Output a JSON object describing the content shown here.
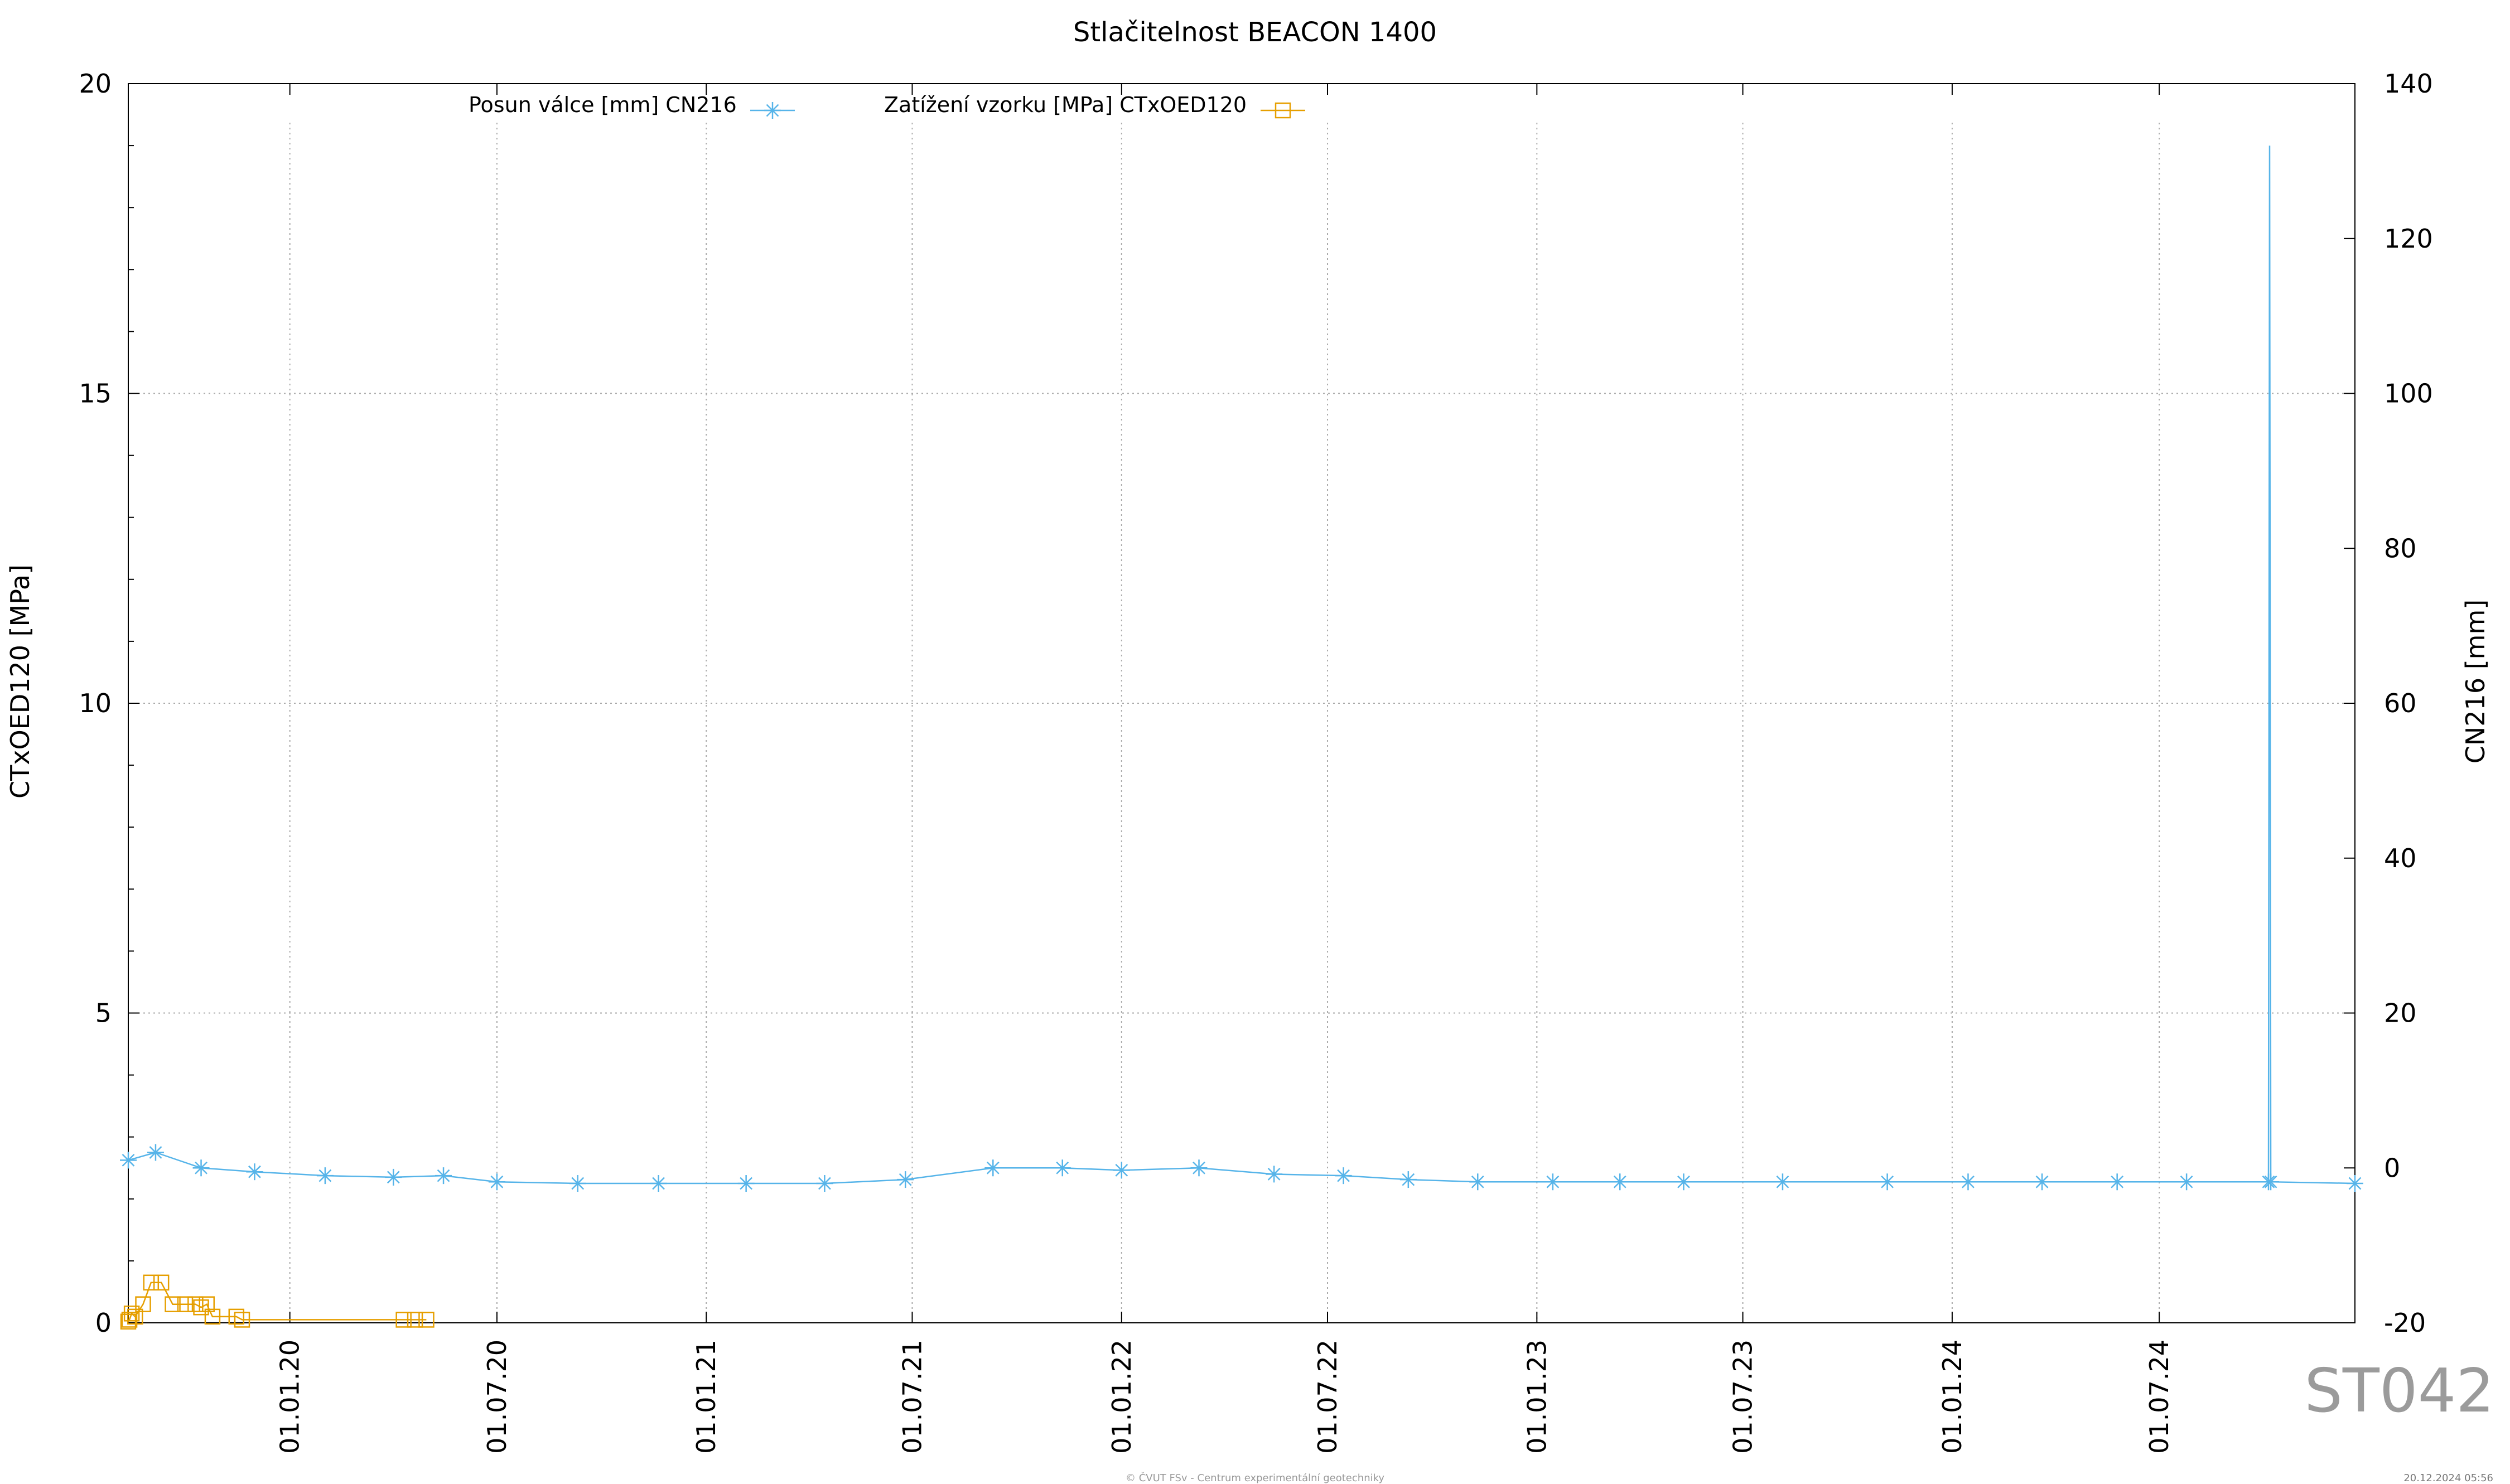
{
  "chart_data": {
    "type": "line",
    "title": "Stlačitelnost BEACON 1400",
    "ylabel_left": "CTxOED120 [MPa]",
    "ylabel_right": "CN216 [mm]",
    "x_tick_labels": [
      "01.01.20",
      "01.07.20",
      "01.01.21",
      "01.07.21",
      "01.01.22",
      "01.07.22",
      "01.01.23",
      "01.07.23",
      "01.01.24",
      "01.07.24"
    ],
    "x_tick_dates": [
      "2020-01-01",
      "2020-07-01",
      "2021-01-01",
      "2021-07-01",
      "2022-01-01",
      "2022-07-01",
      "2023-01-01",
      "2023-07-01",
      "2024-01-01",
      "2024-07-01"
    ],
    "xlim": [
      "2019-08-12",
      "2024-12-20"
    ],
    "ylim_left": [
      0,
      20
    ],
    "yticks_left": [
      0,
      5,
      10,
      15,
      20
    ],
    "ylim_right": [
      -20,
      140
    ],
    "yticks_right": [
      -20,
      0,
      20,
      40,
      60,
      80,
      100,
      120,
      140
    ],
    "grid": true,
    "legend_placement": "top",
    "series": [
      {
        "name": "Posun válce [mm] CN216",
        "axis": "right",
        "color": "#56b4e9",
        "marker": "asterisk",
        "x": [
          "2019-08-12",
          "2019-09-05",
          "2019-10-15",
          "2019-12-01",
          "2020-02-01",
          "2020-04-01",
          "2020-05-15",
          "2020-07-01",
          "2020-09-10",
          "2020-11-20",
          "2021-02-05",
          "2021-04-15",
          "2021-06-25",
          "2021-09-10",
          "2021-11-10",
          "2022-01-01",
          "2022-03-10",
          "2022-05-15",
          "2022-07-15",
          "2022-09-10",
          "2022-11-10",
          "2023-01-15",
          "2023-03-15",
          "2023-05-10",
          "2023-08-05",
          "2023-11-05",
          "2024-01-15",
          "2024-03-20",
          "2024-05-25",
          "2024-07-25",
          "2024-10-05",
          "2024-10-06",
          "2024-10-07",
          "2024-12-20"
        ],
        "values": [
          1.0,
          2.0,
          0.0,
          -0.5,
          -1.0,
          -1.2,
          -1.0,
          -1.8,
          -2.0,
          -2.0,
          -2.0,
          -2.0,
          -1.5,
          0.0,
          0.0,
          -0.3,
          0.0,
          -0.8,
          -1.0,
          -1.5,
          -1.8,
          -1.8,
          -1.8,
          -1.8,
          -1.8,
          -1.8,
          -1.8,
          -1.8,
          -1.8,
          -1.8,
          -1.8,
          132.0,
          -1.8,
          -2.0
        ]
      },
      {
        "name": "Zatížení vzorku [MPa] CTxOED120",
        "axis": "left",
        "color": "#e69f00",
        "marker": "square",
        "x": [
          "2019-08-12",
          "2019-08-13",
          "2019-08-15",
          "2019-08-18",
          "2019-08-25",
          "2019-09-01",
          "2019-09-10",
          "2019-09-20",
          "2019-10-01",
          "2019-10-10",
          "2019-10-15",
          "2019-10-20",
          "2019-10-25",
          "2019-11-15",
          "2019-11-20",
          "2020-04-10",
          "2020-04-20",
          "2020-04-30"
        ],
        "values": [
          0.02,
          0.05,
          0.15,
          0.1,
          0.3,
          0.65,
          0.65,
          0.3,
          0.3,
          0.3,
          0.25,
          0.3,
          0.1,
          0.1,
          0.05,
          0.05,
          0.05,
          0.05
        ]
      }
    ]
  },
  "legend": {
    "series1_label": "Posun válce [mm] CN216",
    "series2_label": "Zatížení vzorku [MPa] CTxOED120"
  },
  "station_id": "ST042",
  "footer": {
    "credit": "© ČVUT FSv - Centrum experimentální geotechniky",
    "date": "20.12.2024 05:56"
  }
}
